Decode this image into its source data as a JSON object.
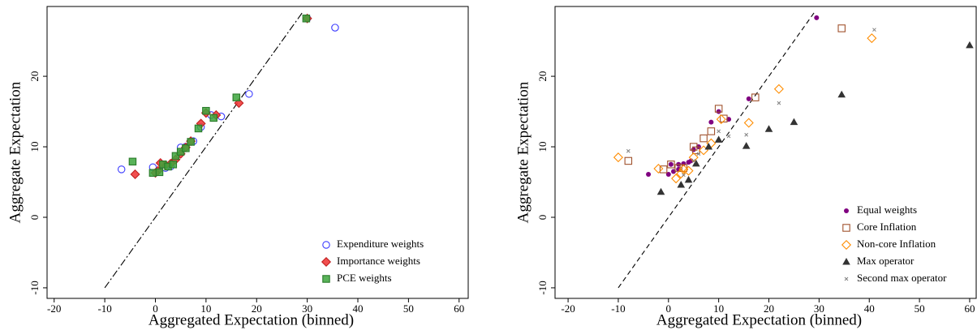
{
  "chart_data": [
    {
      "type": "scatter",
      "x_label": "Aggregated Expectation (binned)",
      "y_label": "Aggregate Expectation",
      "xlim": [
        -21.4,
        61.8
      ],
      "ylim": [
        -11.5,
        29.9
      ],
      "xticks": [
        -20,
        -10,
        0,
        10,
        20,
        30,
        40,
        50,
        60
      ],
      "yticks": [
        -10,
        0,
        10,
        20
      ],
      "diagonal": {
        "x": [
          -10,
          29
        ],
        "y": [
          -10,
          29
        ],
        "style": "dashdot"
      },
      "legend": "lower right",
      "series": [
        {
          "name": "Expenditure weights",
          "color": "#3b3bff",
          "marker": "circle-open",
          "x": [
            -6.7,
            35.5,
            18.5,
            -0.5,
            2,
            3,
            5,
            6,
            7.5,
            9,
            11,
            13,
            30
          ],
          "values": [
            6.8,
            26.9,
            17.5,
            7.1,
            7,
            7.2,
            9.9,
            10,
            10.8,
            12.8,
            14.5,
            14.3,
            28.2
          ]
        },
        {
          "name": "Importance weights",
          "color": "#f03c3c",
          "marker": "diamond",
          "x": [
            -4,
            30,
            16.5,
            12,
            10,
            9,
            7,
            6,
            5,
            4,
            3,
            2,
            1,
            0.5,
            0
          ],
          "values": [
            6.1,
            28.2,
            16.2,
            14.5,
            14.8,
            13.3,
            10.8,
            9.9,
            9,
            8.2,
            7.6,
            7.4,
            7.7,
            6.6,
            6.3
          ]
        },
        {
          "name": "PCE weights",
          "color": "#3ca63c",
          "marker": "square",
          "x": [
            -4.5,
            -0.5,
            0.8,
            1.5,
            2.5,
            3.5,
            4,
            5,
            6,
            7,
            8.5,
            10,
            11.5,
            16,
            29.8
          ],
          "values": [
            7.9,
            6.3,
            6.4,
            7.5,
            7.2,
            7.5,
            8.7,
            9.3,
            9.8,
            10.7,
            12.6,
            15.1,
            14.1,
            17,
            28.2
          ]
        }
      ]
    },
    {
      "type": "scatter",
      "x_label": "Aggregated Expectation (binned)",
      "y_label": "Aggregate Expectation",
      "xlim": [
        -22.6,
        61.3
      ],
      "ylim": [
        -11.5,
        29.9
      ],
      "xticks": [
        -20,
        -10,
        0,
        10,
        20,
        30,
        40,
        50,
        60
      ],
      "yticks": [
        -10,
        0,
        10,
        20
      ],
      "diagonal": {
        "x": [
          -10,
          29
        ],
        "y": [
          -10,
          29
        ],
        "style": "dashed"
      },
      "legend": "lower right",
      "series": [
        {
          "name": "Equal weights",
          "color": "#800080",
          "marker": "dot",
          "x": [
            -4,
            0,
            0.5,
            1,
            2,
            3,
            4,
            5,
            6,
            8.5,
            10,
            12,
            16,
            29.5,
            4.5,
            2
          ],
          "values": [
            6.1,
            6.1,
            7.5,
            6.5,
            7.5,
            7.6,
            7.8,
            9.6,
            10,
            13.5,
            15,
            13.9,
            16.8,
            28.3,
            8,
            6.8
          ]
        },
        {
          "name": "Core Inflation",
          "color": "#a0522d",
          "marker": "square-open",
          "x": [
            -8,
            -1,
            0.5,
            2,
            3,
            5,
            7,
            8.5,
            10,
            11,
            17.3,
            34.5,
            5.5
          ],
          "values": [
            8,
            6.8,
            7.5,
            7,
            7,
            10,
            11.2,
            12.2,
            15.4,
            14,
            17,
            26.8,
            9.5
          ]
        },
        {
          "name": "Non-core Inflation",
          "color": "#ff8c00",
          "marker": "diamond-open",
          "x": [
            -10,
            -2,
            1.5,
            2.5,
            4,
            5,
            7,
            8.5,
            10.5,
            16,
            22,
            40.5,
            3
          ],
          "values": [
            8.5,
            6.9,
            5.5,
            6.2,
            6.6,
            8.5,
            9.5,
            10.5,
            13.9,
            13.4,
            18.2,
            25.4,
            6.8
          ]
        },
        {
          "name": "Max operator",
          "color": "#333333",
          "marker": "triangle",
          "x": [
            -1.5,
            2.5,
            4,
            5.5,
            8,
            10,
            15.5,
            20,
            25,
            34.5,
            60
          ],
          "values": [
            3.6,
            4.6,
            5.3,
            7.6,
            10,
            11,
            10.1,
            12.5,
            13.5,
            17.4,
            24.4
          ]
        },
        {
          "name": "Second max operator",
          "color": "#808080",
          "marker": "x",
          "x": [
            -8,
            10,
            12,
            15.5,
            22,
            41,
            6,
            3,
            5
          ],
          "values": [
            9.4,
            12.2,
            11.5,
            11.7,
            16.2,
            26.6,
            9,
            6,
            8
          ]
        }
      ]
    }
  ]
}
